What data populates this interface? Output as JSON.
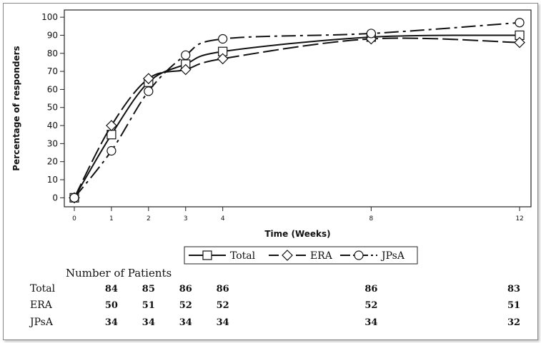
{
  "chart_data": {
    "type": "line",
    "title": "",
    "xlabel": "Time (Weeks)",
    "ylabel": "Percentage of responders",
    "x": [
      0,
      1,
      2,
      3,
      4,
      8,
      12
    ],
    "x_ticks": [
      0,
      1,
      2,
      3,
      4,
      8,
      12
    ],
    "y_ticks": [
      0,
      10,
      20,
      30,
      40,
      50,
      60,
      70,
      80,
      90,
      100
    ],
    "xlim": [
      0,
      12.5
    ],
    "ylim": [
      -5,
      104
    ],
    "grid": false,
    "legend_position": "bottom",
    "series": [
      {
        "name": "Total",
        "marker": "square",
        "dash": "solid",
        "values": [
          0,
          35,
          64,
          74,
          81,
          89,
          90
        ]
      },
      {
        "name": "ERA",
        "marker": "diamond",
        "dash": "long-dash",
        "values": [
          0,
          40,
          66,
          71,
          77,
          88,
          86
        ]
      },
      {
        "name": "JPsA",
        "marker": "circle",
        "dash": "dash-dot",
        "values": [
          0,
          26,
          59,
          79,
          88,
          91,
          97
        ]
      }
    ]
  },
  "patients_table": {
    "title": "Number of Patients",
    "x": [
      1,
      2,
      3,
      4,
      8,
      12
    ],
    "rows": [
      {
        "label": "Total",
        "values": [
          "84",
          "85",
          "86",
          "86",
          "86",
          "83"
        ]
      },
      {
        "label": "ERA",
        "values": [
          "50",
          "51",
          "52",
          "52",
          "52",
          "51"
        ]
      },
      {
        "label": "JPsA",
        "values": [
          "34",
          "34",
          "34",
          "34",
          "34",
          "32"
        ]
      }
    ]
  }
}
